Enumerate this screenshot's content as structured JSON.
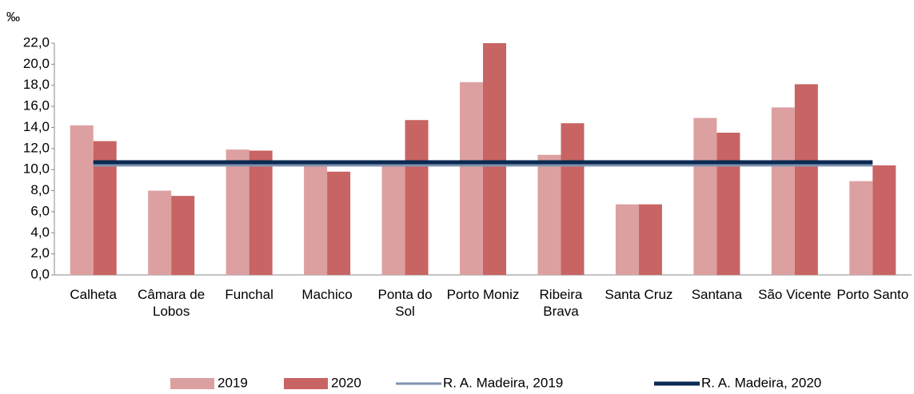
{
  "chart_data": {
    "type": "bar",
    "unit_label": "‰",
    "categories": [
      "Calheta",
      "Câmara de Lobos",
      "Funchal",
      "Machico",
      "Ponta do Sol",
      "Porto Moniz",
      "Ribeira Brava",
      "Santa Cruz",
      "Santana",
      "São Vicente",
      "Porto Santo"
    ],
    "series": [
      {
        "name": "2019",
        "type": "bar",
        "color": "#dda0a0",
        "values": [
          14.2,
          8.0,
          11.9,
          10.6,
          10.5,
          18.3,
          11.4,
          6.7,
          14.9,
          15.9,
          8.9
        ]
      },
      {
        "name": "2020",
        "type": "bar",
        "color": "#c86464",
        "values": [
          12.7,
          7.5,
          11.8,
          9.8,
          14.7,
          22.0,
          14.4,
          6.7,
          13.5,
          18.1,
          10.4
        ]
      },
      {
        "name": "R. A. Madeira, 2019",
        "type": "line",
        "color": "#7f93b0",
        "values": [
          10.4,
          10.4,
          10.4,
          10.4,
          10.4,
          10.4,
          10.4,
          10.4,
          10.4,
          10.4,
          10.4
        ]
      },
      {
        "name": "R. A. Madeira, 2020",
        "type": "line",
        "color": "#0a2a52",
        "values": [
          10.7,
          10.7,
          10.7,
          10.7,
          10.7,
          10.7,
          10.7,
          10.7,
          10.7,
          10.7,
          10.7
        ]
      }
    ],
    "ylim": [
      0,
      22
    ],
    "yticks": [
      {
        "value": 0,
        "label": "0,0"
      },
      {
        "value": 2,
        "label": "2,0"
      },
      {
        "value": 4,
        "label": "4,0"
      },
      {
        "value": 6,
        "label": "6,0"
      },
      {
        "value": 8,
        "label": "8,0"
      },
      {
        "value": 10,
        "label": "10,0"
      },
      {
        "value": 12,
        "label": "12,0"
      },
      {
        "value": 14,
        "label": "14,0"
      },
      {
        "value": 16,
        "label": "16,0"
      },
      {
        "value": 18,
        "label": "18,0"
      },
      {
        "value": 20,
        "label": "20,0"
      },
      {
        "value": 22,
        "label": "22,0"
      }
    ],
    "legend": "bottom"
  }
}
